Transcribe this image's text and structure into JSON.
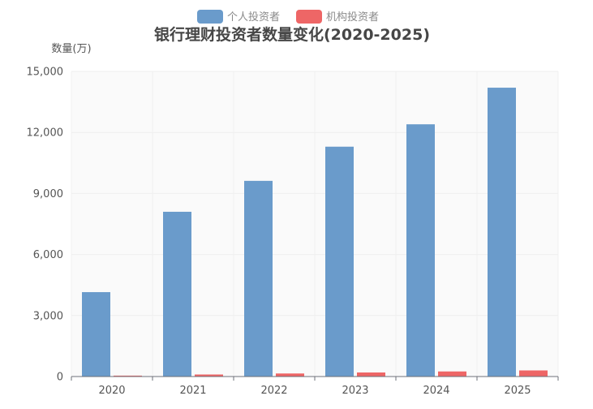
{
  "chart_data": {
    "type": "bar",
    "title": "银行理财投资者数量变化(2020-2025)",
    "ylabel": "数量(万)",
    "xlabel": "",
    "categories": [
      "2020",
      "2021",
      "2022",
      "2023",
      "2024",
      "2025"
    ],
    "series": [
      {
        "name": "个人投资者",
        "color": "#6a9bcb",
        "values": [
          4150,
          8100,
          9620,
          11300,
          12400,
          14200
        ]
      },
      {
        "name": "机构投资者",
        "color": "#ee6666",
        "values": [
          45,
          100,
          150,
          200,
          250,
          300
        ]
      }
    ],
    "ylim": [
      0,
      15000
    ],
    "yticks": [
      0,
      3000,
      6000,
      9000,
      12000,
      15000
    ],
    "ytick_labels": [
      "0",
      "3,000",
      "6,000",
      "9,000",
      "12,000",
      "15,000"
    ],
    "grid": true,
    "legend_position": "top-center"
  }
}
